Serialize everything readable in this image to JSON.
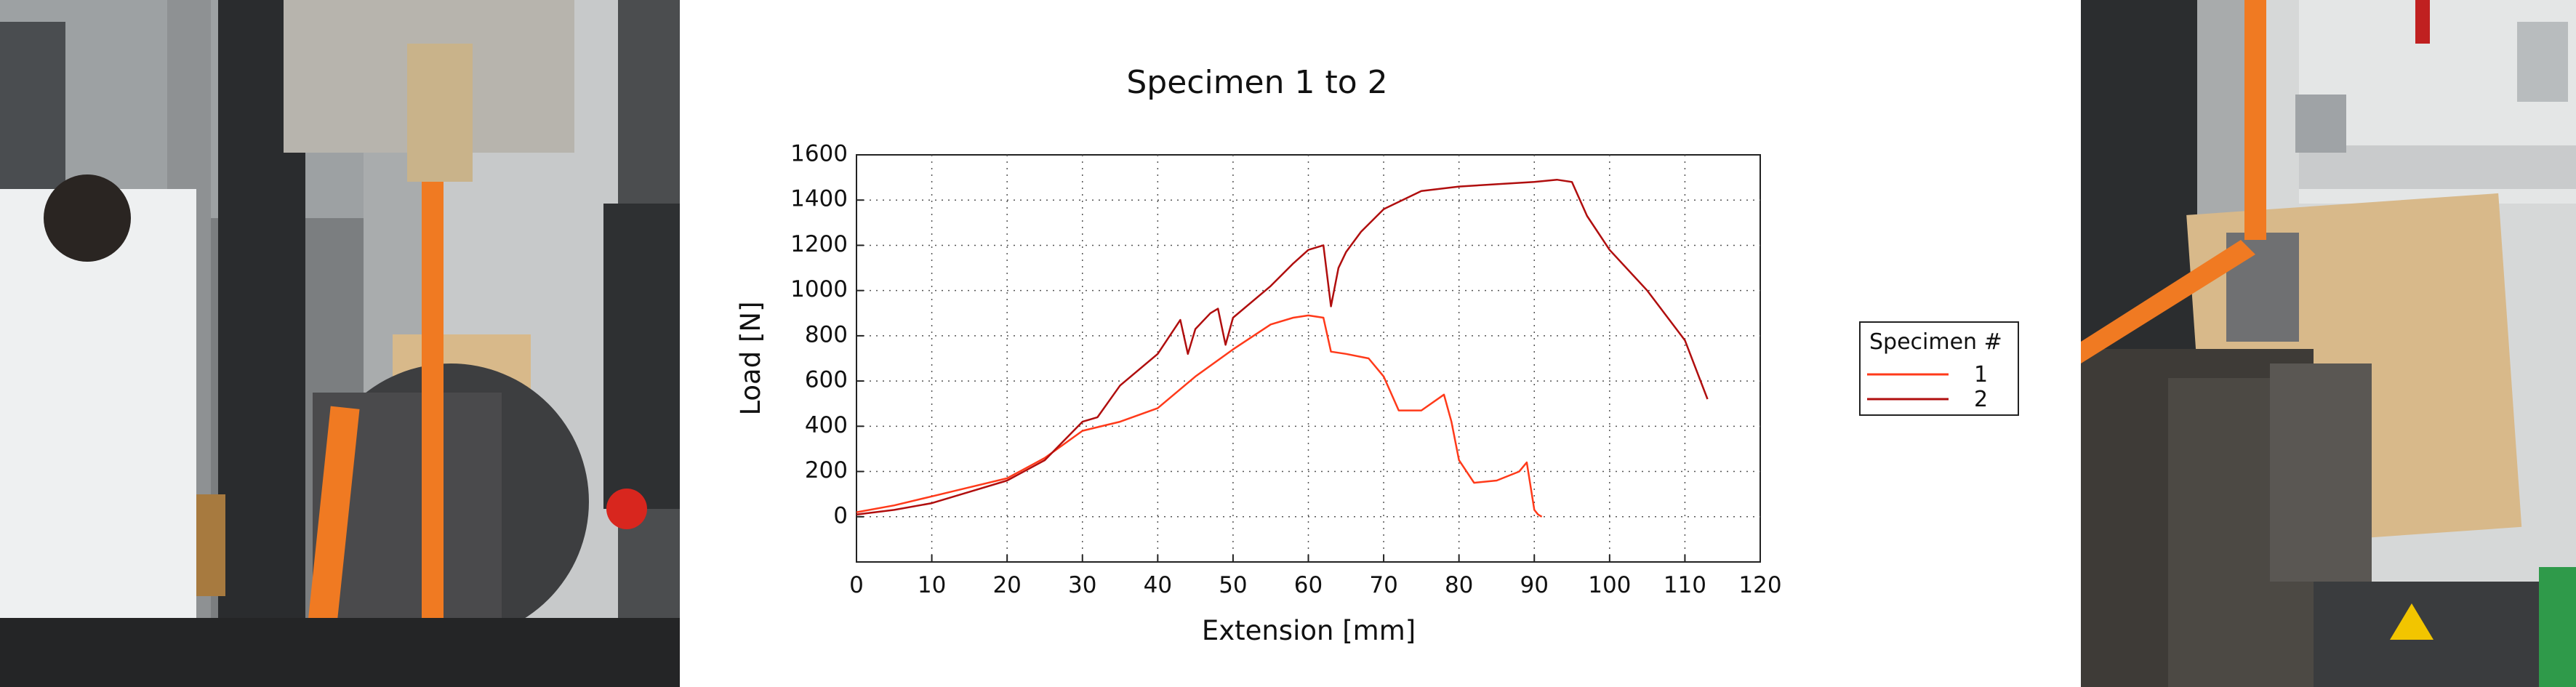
{
  "colors": {
    "series_1": "#ff3a1a",
    "series_2": "#b00e0e",
    "strap": "#f07a22",
    "machine_dark": "#3a3a3a",
    "plywood": "#d8b98a"
  },
  "chart_data": {
    "type": "line",
    "title": "Specimen 1 to 2",
    "xlabel": "Extension [mm]",
    "ylabel": "Load [N]",
    "xlim": [
      0,
      120
    ],
    "ylim": [
      -200,
      1600
    ],
    "x_ticks": [
      0,
      10,
      20,
      30,
      40,
      50,
      60,
      70,
      80,
      90,
      100,
      110,
      120
    ],
    "y_ticks": [
      0,
      200,
      400,
      600,
      800,
      1000,
      1200,
      1400,
      1600
    ],
    "grid": "dotted",
    "legend": {
      "title": "Specimen #",
      "placement": "right"
    },
    "series": [
      {
        "name": "1",
        "x": [
          0,
          5,
          10,
          15,
          20,
          25,
          30,
          35,
          40,
          45,
          50,
          55,
          58,
          60,
          62,
          63,
          65,
          68,
          70,
          72,
          75,
          78,
          79,
          80,
          82,
          85,
          88,
          89,
          90,
          90.5,
          91
        ],
        "y": [
          20,
          50,
          90,
          130,
          170,
          260,
          380,
          420,
          480,
          620,
          740,
          850,
          880,
          890,
          880,
          730,
          720,
          700,
          620,
          470,
          470,
          540,
          420,
          250,
          150,
          160,
          200,
          240,
          30,
          10,
          0
        ]
      },
      {
        "name": "2",
        "x": [
          0,
          5,
          10,
          15,
          20,
          25,
          30,
          32,
          35,
          40,
          43,
          44,
          45,
          47,
          48,
          49,
          50,
          55,
          58,
          60,
          62,
          63,
          64,
          65,
          67,
          70,
          75,
          80,
          85,
          90,
          93,
          95,
          97,
          100,
          105,
          110,
          113
        ],
        "y": [
          10,
          30,
          60,
          110,
          160,
          250,
          420,
          440,
          580,
          720,
          870,
          720,
          830,
          900,
          920,
          760,
          880,
          1020,
          1120,
          1180,
          1200,
          930,
          1100,
          1170,
          1260,
          1360,
          1440,
          1460,
          1470,
          1480,
          1490,
          1480,
          1330,
          1180,
          1000,
          780,
          520
        ]
      }
    ]
  }
}
